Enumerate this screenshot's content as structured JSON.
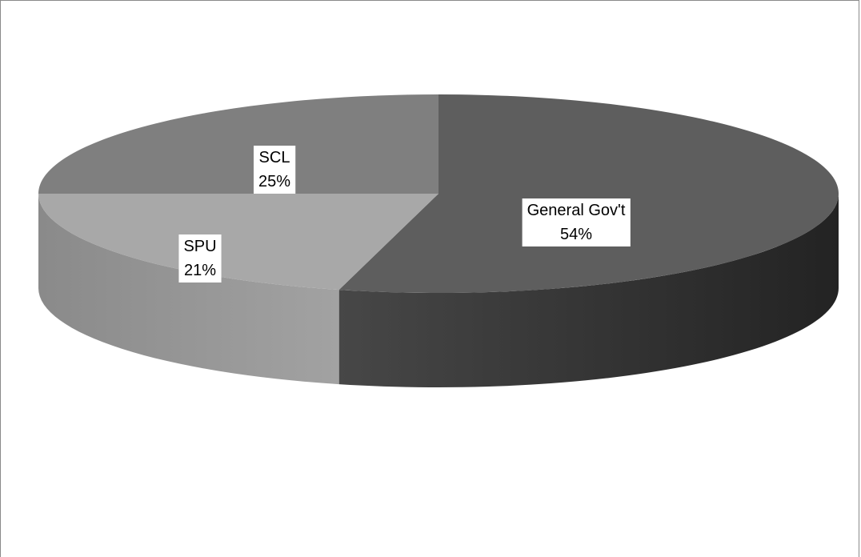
{
  "chart_data": {
    "type": "pie",
    "variant": "3d",
    "title": "",
    "slices": [
      {
        "label": "General Gov't",
        "value": 54,
        "percent_label": "54%",
        "color": "#5e5e5e"
      },
      {
        "label": "SPU",
        "value": 21,
        "percent_label": "21%",
        "color": "#a8a8a8"
      },
      {
        "label": "SCL",
        "value": 25,
        "percent_label": "25%",
        "color": "#7f7f7f"
      }
    ],
    "legend": "none",
    "data_labels": "category name and percentage"
  }
}
